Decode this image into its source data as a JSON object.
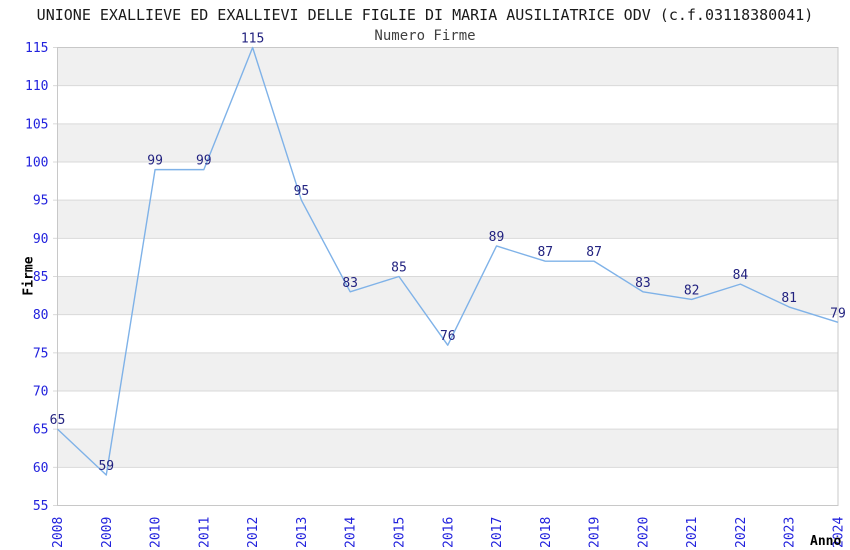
{
  "chart_data": {
    "type": "line",
    "title": "UNIONE EXALLIEVE ED EXALLIEVI DELLE FIGLIE DI MARIA AUSILIATRICE ODV (c.f.03118380041)",
    "subtitle": "Numero Firme",
    "xlabel": "Anno",
    "ylabel": "Firme",
    "categories": [
      "2008",
      "2009",
      "2010",
      "2011",
      "2012",
      "2013",
      "2014",
      "2015",
      "2016",
      "2017",
      "2018",
      "2019",
      "2020",
      "2021",
      "2022",
      "2023",
      "2024"
    ],
    "values": [
      65,
      59,
      99,
      99,
      115,
      95,
      83,
      85,
      76,
      89,
      87,
      87,
      83,
      82,
      84,
      81,
      79
    ],
    "ylim": [
      55,
      115
    ],
    "ytick_step": 5,
    "grid": "horizontal",
    "banded_rows": true,
    "point_labels_visible": true,
    "legend_position": "none",
    "marker": "none",
    "colors": {
      "line": "#7FB2E8",
      "point_label": "#232380",
      "tick_label": "#2222DD",
      "title": "#1A1A1A",
      "subtitle": "#404040",
      "axis_label": "#000000",
      "grid": "#D9D9D9",
      "band": "#F0F0F0",
      "border": "#C8C8C8",
      "background": "#FFFFFF"
    }
  }
}
